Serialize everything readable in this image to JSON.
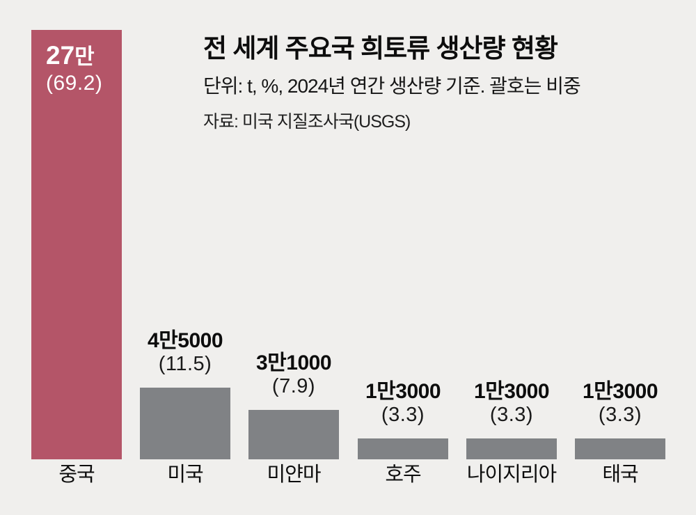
{
  "page": {
    "background_color": "#f0efed"
  },
  "header": {
    "title": "전 세계 주요국 희토류 생산량 현황",
    "subtitle": "단위: t, %, 2024년 연간 생산량 기준. 괄호는 비중",
    "source": "자료: 미국 지질조사국(USGS)"
  },
  "chart_data": {
    "type": "bar",
    "title": "전 세계 주요국 희토류 생산량 현황",
    "unit": "t, %",
    "basis": "2024년 연간 생산량 기준",
    "categories": [
      "중국",
      "미국",
      "미얀마",
      "호주",
      "나이지리아",
      "태국"
    ],
    "values": [
      270000,
      45000,
      31000,
      13000,
      13000,
      13000
    ],
    "value_labels": [
      "27만",
      "4만5000",
      "3만1000",
      "1만3000",
      "1만3000",
      "1만3000"
    ],
    "share_labels": [
      "(69.2)",
      "(11.5)",
      "(7.9)",
      "(3.3)",
      "(3.3)",
      "(3.3)"
    ],
    "shares_percent": [
      69.2,
      11.5,
      7.9,
      3.3,
      3.3,
      3.3
    ],
    "ylim": [
      0,
      270000
    ],
    "highlight_index": 0,
    "colors": {
      "highlight": "#b45568",
      "default": "#808285"
    },
    "grid": false,
    "legend": false,
    "label_position_note": "highlight bar labeled inside-top in white; others labeled above bar in black"
  }
}
